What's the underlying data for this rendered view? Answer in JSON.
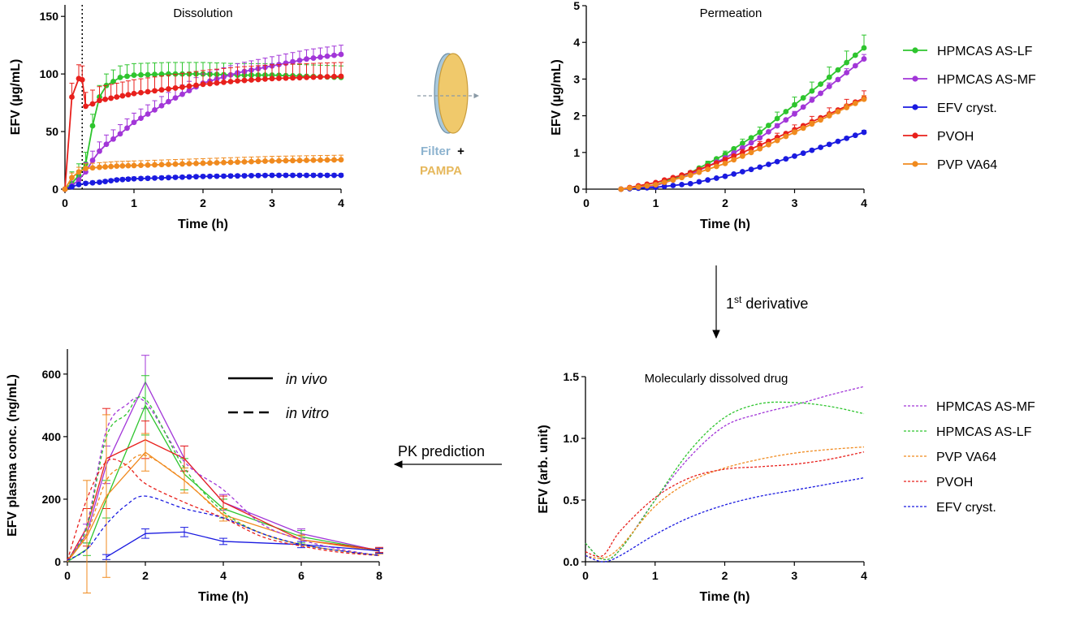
{
  "colors": {
    "HPMCAS AS-LF": "#2ec52e",
    "HPMCAS AS-MF": "#a236d8",
    "EFV cryst.": "#1a1ae0",
    "PVOH": "#e8201c",
    "PVP VA64": "#f08a1e"
  },
  "middle": {
    "filter_word": "Filter",
    "plus": "+",
    "pampa_word": "PAMPA",
    "derivative_label_base": "1",
    "derivative_label_sup": "st",
    "derivative_label_rest": " derivative",
    "pk_label": "PK prediction"
  },
  "chart_data": [
    {
      "id": "dissolution",
      "type": "line",
      "title": "Dissolution",
      "xlabel": "Time (h)",
      "ylabel": "EFV (µg/mL)",
      "xlim": [
        0,
        4
      ],
      "ylim": [
        0,
        160
      ],
      "xticks": [
        0,
        1,
        2,
        3,
        4
      ],
      "yticks": [
        0,
        50,
        100,
        150
      ],
      "vline_x": 0.25,
      "series": [
        {
          "name": "HPMCAS AS-LF",
          "x": [
            0,
            0.1,
            0.2,
            0.3,
            0.4,
            0.5,
            0.6,
            0.8,
            1,
            1.5,
            2,
            2.5,
            3,
            3.5,
            4
          ],
          "y": [
            0,
            5,
            12,
            22,
            55,
            80,
            90,
            97,
            99,
            100,
            100,
            99,
            99,
            98,
            97
          ],
          "err": 10
        },
        {
          "name": "HPMCAS AS-MF",
          "x": [
            0,
            0.1,
            0.2,
            0.3,
            0.4,
            0.5,
            0.6,
            0.8,
            1,
            1.5,
            2,
            2.5,
            3,
            3.5,
            4
          ],
          "y": [
            0,
            3,
            8,
            15,
            25,
            33,
            39,
            48,
            58,
            76,
            92,
            101,
            107,
            113,
            117
          ],
          "err": 8
        },
        {
          "name": "EFV cryst.",
          "x": [
            0,
            0.1,
            0.2,
            0.3,
            0.5,
            0.75,
            1,
            1.5,
            2,
            2.5,
            3,
            3.5,
            4
          ],
          "y": [
            0,
            2,
            4,
            5,
            6,
            8,
            9,
            10,
            11,
            11.5,
            12,
            12,
            12
          ],
          "err": 1.5
        },
        {
          "name": "PVOH",
          "x": [
            0,
            0.1,
            0.2,
            0.25,
            0.3,
            0.4,
            0.5,
            0.75,
            1,
            1.5,
            2,
            2.5,
            3,
            3.5,
            4
          ],
          "y": [
            0,
            80,
            96,
            95,
            72,
            74,
            77,
            80,
            83,
            87,
            91,
            94,
            96,
            97,
            98
          ],
          "err": 12
        },
        {
          "name": "PVP VA64",
          "x": [
            0,
            0.1,
            0.2,
            0.3,
            0.5,
            0.75,
            1,
            1.5,
            2,
            2.5,
            3,
            3.5,
            4
          ],
          "y": [
            0,
            10,
            15,
            18,
            19,
            20,
            20.5,
            21.5,
            22.5,
            23.5,
            24.5,
            25,
            25.5
          ],
          "err": 4
        }
      ]
    },
    {
      "id": "permeation",
      "type": "line",
      "title": "Permeation",
      "xlabel": "Time (h)",
      "ylabel": "EFV (µg/mL)",
      "xlim": [
        0,
        4
      ],
      "ylim": [
        0,
        5
      ],
      "xticks": [
        0,
        1,
        2,
        3,
        4
      ],
      "yticks": [
        0,
        1,
        2,
        3,
        4,
        5
      ],
      "legend": [
        "HPMCAS AS-LF",
        "HPMCAS AS-MF",
        "EFV cryst.",
        "PVOH",
        "PVP VA64"
      ],
      "series": [
        {
          "name": "HPMCAS AS-LF",
          "x": [
            0.5,
            1,
            1.5,
            2,
            2.5,
            3,
            3.5,
            4
          ],
          "y": [
            0,
            0.12,
            0.45,
            0.95,
            1.55,
            2.3,
            3.05,
            3.85
          ],
          "err": 0.35
        },
        {
          "name": "HPMCAS AS-MF",
          "x": [
            0.5,
            1,
            1.5,
            2,
            2.5,
            3,
            3.5,
            4
          ],
          "y": [
            0,
            0.1,
            0.4,
            0.85,
            1.4,
            2.05,
            2.8,
            3.55
          ],
          "err": 0.12
        },
        {
          "name": "EFV cryst.",
          "x": [
            0.5,
            1,
            1.5,
            2,
            2.5,
            3,
            3.5,
            4
          ],
          "y": [
            0,
            0.05,
            0.15,
            0.35,
            0.6,
            0.9,
            1.22,
            1.55
          ],
          "err": 0.05
        },
        {
          "name": "PVOH",
          "x": [
            0.5,
            1,
            1.5,
            2,
            2.5,
            3,
            3.5,
            4
          ],
          "y": [
            0,
            0.18,
            0.45,
            0.8,
            1.2,
            1.62,
            2.05,
            2.48
          ],
          "err": 0.2
        },
        {
          "name": "PVP VA64",
          "x": [
            0.5,
            1,
            1.5,
            2,
            2.5,
            3,
            3.5,
            4
          ],
          "y": [
            0,
            0.12,
            0.38,
            0.7,
            1.1,
            1.55,
            2.0,
            2.45
          ],
          "err": 0.1
        }
      ]
    },
    {
      "id": "molecularly-dissolved",
      "type": "line",
      "title": "Molecularly dissolved drug",
      "xlabel": "Time (h)",
      "ylabel": "EFV (arb. unit)",
      "xlim": [
        0,
        4
      ],
      "ylim": [
        0,
        1.5
      ],
      "xticks": [
        0,
        1,
        2,
        3,
        4
      ],
      "yticks": [
        0.0,
        0.5,
        1.0,
        1.5
      ],
      "legend": [
        "HPMCAS AS-MF",
        "HPMCAS AS-LF",
        "PVP VA64",
        "PVOH",
        "EFV cryst."
      ],
      "series": [
        {
          "name": "HPMCAS AS-MF",
          "x": [
            0,
            0.25,
            0.5,
            1,
            1.5,
            2,
            2.5,
            3,
            3.5,
            4
          ],
          "y": [
            0.15,
            0.02,
            0.1,
            0.5,
            0.85,
            1.1,
            1.2,
            1.27,
            1.35,
            1.42
          ]
        },
        {
          "name": "HPMCAS AS-LF",
          "x": [
            0,
            0.25,
            0.5,
            1,
            1.5,
            2,
            2.5,
            3,
            3.5,
            4
          ],
          "y": [
            0.15,
            0.02,
            0.1,
            0.5,
            0.9,
            1.17,
            1.28,
            1.29,
            1.26,
            1.2
          ]
        },
        {
          "name": "PVP VA64",
          "x": [
            0,
            0.25,
            0.5,
            1,
            1.5,
            2,
            2.5,
            3,
            3.5,
            4
          ],
          "y": [
            0.05,
            0.03,
            0.12,
            0.45,
            0.65,
            0.76,
            0.83,
            0.88,
            0.91,
            0.93
          ]
        },
        {
          "name": "PVOH",
          "x": [
            0,
            0.25,
            0.5,
            1,
            1.5,
            2,
            2.5,
            3,
            3.5,
            4
          ],
          "y": [
            0.08,
            0.05,
            0.25,
            0.52,
            0.68,
            0.75,
            0.77,
            0.79,
            0.83,
            0.89
          ]
        },
        {
          "name": "EFV cryst.",
          "x": [
            0,
            0.25,
            0.5,
            1,
            1.5,
            2,
            2.5,
            3,
            3.5,
            4
          ],
          "y": [
            0.05,
            0.0,
            0.05,
            0.22,
            0.36,
            0.46,
            0.53,
            0.58,
            0.63,
            0.68
          ]
        }
      ]
    },
    {
      "id": "pk-prediction",
      "type": "line",
      "title": "",
      "xlabel": "Time (h)",
      "ylabel": "EFV plasma conc. (ng/mL)",
      "xlim": [
        0,
        8
      ],
      "ylim": [
        0,
        680
      ],
      "xticks": [
        0,
        2,
        4,
        6,
        8
      ],
      "yticks": [
        0,
        200,
        400,
        600
      ],
      "legend_styles": [
        {
          "label": "in vivo",
          "style": "solid"
        },
        {
          "label": "in vitro",
          "style": "dashed"
        }
      ],
      "series": [
        {
          "name": "HPMCAS AS-MF",
          "style": "solid",
          "x": [
            0,
            0.5,
            1,
            2,
            3,
            4,
            6,
            8
          ],
          "y": [
            0,
            90,
            310,
            575,
            330,
            190,
            90,
            35
          ],
          "err": [
            0,
            30,
            60,
            85,
            40,
            25,
            15,
            8
          ]
        },
        {
          "name": "HPMCAS AS-LF",
          "style": "solid",
          "x": [
            0,
            0.5,
            1,
            2,
            3,
            4,
            6,
            8
          ],
          "y": [
            0,
            40,
            200,
            500,
            280,
            170,
            80,
            35
          ],
          "err": [
            0,
            20,
            60,
            95,
            50,
            30,
            20,
            8
          ]
        },
        {
          "name": "PVOH",
          "style": "solid",
          "x": [
            0,
            0.5,
            1,
            2,
            3,
            4,
            6,
            8
          ],
          "y": [
            0,
            110,
            330,
            390,
            330,
            190,
            70,
            38
          ],
          "err": [
            0,
            60,
            160,
            60,
            40,
            20,
            15,
            8
          ]
        },
        {
          "name": "PVP VA64",
          "style": "solid",
          "x": [
            0,
            0.5,
            1,
            2,
            3,
            4,
            6,
            8
          ],
          "y": [
            0,
            80,
            210,
            350,
            260,
            150,
            70,
            33
          ],
          "err": [
            0,
            180,
            260,
            60,
            40,
            20,
            15,
            8
          ]
        },
        {
          "name": "EFV cryst.",
          "style": "solid",
          "x": [
            1,
            2,
            3,
            4,
            6,
            8
          ],
          "y": [
            15,
            90,
            95,
            65,
            55,
            35
          ],
          "err": [
            8,
            15,
            15,
            10,
            10,
            8
          ]
        },
        {
          "name": "HPMCAS AS-MF",
          "style": "dashed",
          "x": [
            0,
            0.5,
            1,
            1.5,
            2,
            3,
            4,
            5,
            6,
            7,
            8
          ],
          "y": [
            5,
            120,
            420,
            500,
            510,
            320,
            230,
            120,
            70,
            40,
            20
          ]
        },
        {
          "name": "HPMCAS AS-LF",
          "style": "dashed",
          "x": [
            0,
            0.5,
            1,
            1.5,
            2,
            3,
            4,
            5,
            6,
            7,
            8
          ],
          "y": [
            5,
            110,
            400,
            470,
            520,
            300,
            160,
            90,
            55,
            35,
            20
          ]
        },
        {
          "name": "PVP VA64",
          "style": "dashed",
          "x": [
            0,
            0.5,
            1,
            1.5,
            2,
            3,
            4,
            5,
            6,
            7,
            8
          ],
          "y": [
            5,
            90,
            260,
            310,
            340,
            260,
            150,
            90,
            55,
            35,
            20
          ]
        },
        {
          "name": "PVOH",
          "style": "dashed",
          "x": [
            0,
            0.5,
            1,
            1.5,
            2,
            3,
            4,
            5,
            6,
            7,
            8
          ],
          "y": [
            5,
            200,
            320,
            310,
            250,
            190,
            140,
            80,
            50,
            30,
            20
          ]
        },
        {
          "name": "EFV cryst.",
          "style": "dashed",
          "x": [
            0,
            0.5,
            1,
            1.5,
            2,
            3,
            4,
            5,
            6,
            7,
            8
          ],
          "y": [
            5,
            40,
            120,
            180,
            210,
            170,
            140,
            90,
            55,
            35,
            20
          ]
        }
      ]
    }
  ]
}
